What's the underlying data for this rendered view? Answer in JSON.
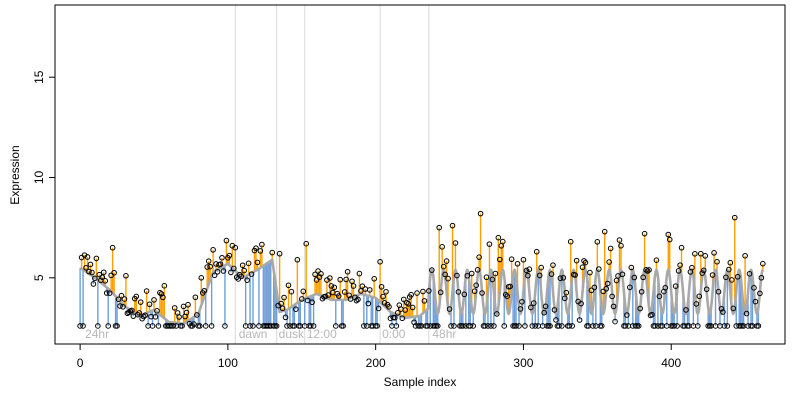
{
  "chart_data": {
    "type": "scatter",
    "xlabel": "Sample index",
    "ylabel": "Expression",
    "xlim": [
      -17,
      477
    ],
    "ylim": [
      1.7,
      18.6
    ],
    "x_ticks": [
      0,
      100,
      200,
      300,
      400
    ],
    "x_tick_labels": [
      "0",
      "100",
      "200",
      "300",
      "400"
    ],
    "y_ticks": [
      5,
      10,
      15
    ],
    "y_tick_labels": [
      "5",
      "10",
      "15"
    ],
    "grid": false,
    "baseline": 2.6,
    "colors": {
      "points": "#000000",
      "up_segments": "#ff9f00",
      "down_segments": "#6f9fd8",
      "trend_line": "#a9a9a9",
      "separators": "#d9d9d9",
      "annotation_text": "#b8b8b8"
    },
    "separators": [
      105,
      133,
      152,
      203,
      236
    ],
    "annotations": [
      {
        "label": "24hr",
        "x": 2
      },
      {
        "label": "dawn",
        "x": 106
      },
      {
        "label": "dusk",
        "x": 133
      },
      {
        "label": "12:00",
        "x": 152
      },
      {
        "label": "0:00",
        "x": 203
      },
      {
        "label": "48hr",
        "x": 237
      }
    ],
    "trend_line": {
      "x": [
        0,
        10,
        20,
        30,
        40,
        50,
        60,
        70,
        80,
        90,
        100,
        110,
        120,
        130,
        135,
        140,
        150,
        160,
        170,
        180,
        190,
        200,
        210,
        220,
        230,
        236
      ],
      "y": [
        5.5,
        5.0,
        4.4,
        3.6,
        3.1,
        3.4,
        2.8,
        2.7,
        3.2,
        5.3,
        5.7,
        5.0,
        5.4,
        5.9,
        3.3,
        3.4,
        3.9,
        4.2,
        3.9,
        3.9,
        4.2,
        4.0,
        3.3,
        3.0,
        3.1,
        3.5
      ]
    },
    "oscillation": {
      "x_start": 236,
      "x_end": 462,
      "period": 8,
      "mean": 4.3,
      "amplitude": 1.1
    },
    "spikes": [
      {
        "x": 22,
        "y": 6.5
      },
      {
        "x": 31,
        "y": 5.1
      },
      {
        "x": 57,
        "y": 4.6
      },
      {
        "x": 82,
        "y": 5.0
      },
      {
        "x": 96,
        "y": 6.0
      },
      {
        "x": 103,
        "y": 6.6
      },
      {
        "x": 135,
        "y": 6.2
      },
      {
        "x": 147,
        "y": 5.9
      },
      {
        "x": 153,
        "y": 6.7
      },
      {
        "x": 163,
        "y": 5.2
      },
      {
        "x": 181,
        "y": 5.3
      },
      {
        "x": 203,
        "y": 5.8
      },
      {
        "x": 243,
        "y": 7.5
      },
      {
        "x": 252,
        "y": 7.6
      },
      {
        "x": 271,
        "y": 8.2
      },
      {
        "x": 283,
        "y": 7.0
      },
      {
        "x": 296,
        "y": 5.7
      },
      {
        "x": 309,
        "y": 6.3
      },
      {
        "x": 332,
        "y": 6.8
      },
      {
        "x": 355,
        "y": 7.3
      },
      {
        "x": 366,
        "y": 6.6
      },
      {
        "x": 382,
        "y": 7.2
      },
      {
        "x": 407,
        "y": 6.5
      },
      {
        "x": 420,
        "y": 6.2
      },
      {
        "x": 431,
        "y": 5.8
      },
      {
        "x": 443,
        "y": 8.0
      },
      {
        "x": 450,
        "y": 6.1
      }
    ]
  }
}
